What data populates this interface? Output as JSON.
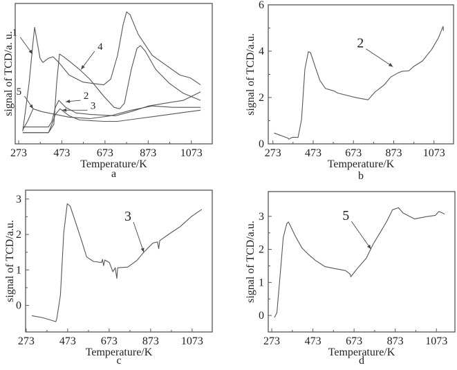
{
  "chart_data": [
    {
      "panel": "a",
      "type": "line",
      "caption": "a",
      "xlabel": "Temperature/K",
      "ylabel": "signal of TCD/a. u.",
      "xticks": [
        273,
        473,
        673,
        873,
        1073
      ],
      "yticks": [],
      "xlim": [
        257,
        1170
      ],
      "ylim": [
        0,
        10
      ],
      "grid": false,
      "line_color": "#555555",
      "series": [
        {
          "name": "1",
          "x": [
            292,
            321,
            340,
            347,
            356,
            372,
            385,
            411,
            433,
            459,
            507,
            571,
            667,
            699,
            731,
            757,
            773,
            789,
            827,
            892,
            956,
            1020,
            1068,
            1116
          ],
          "y": [
            0.9,
            4.3,
            7.3,
            8.3,
            7.5,
            6.1,
            5.8,
            6.1,
            6.2,
            5.8,
            4.9,
            4.4,
            4.2,
            4.6,
            6.3,
            8.5,
            9.4,
            9.2,
            7.8,
            6.3,
            5.6,
            4.9,
            4.7,
            4.2
          ]
        },
        {
          "name": "2",
          "x": [
            292,
            411,
            427,
            443,
            459,
            491,
            539,
            603,
            722,
            795,
            876,
            956,
            1036,
            1116
          ],
          "y": [
            1.2,
            1.2,
            1.6,
            2.6,
            3.1,
            2.6,
            2.2,
            2.1,
            2.0,
            2.3,
            2.7,
            2.9,
            3.1,
            3.7
          ]
        },
        {
          "name": "3",
          "x": [
            292,
            411,
            427,
            443,
            465,
            507,
            555,
            667,
            731,
            827,
            924,
            1020,
            1116
          ],
          "y": [
            0.8,
            0.8,
            1.4,
            2.1,
            2.5,
            2.0,
            1.7,
            1.6,
            1.6,
            1.8,
            2.0,
            2.2,
            2.4
          ]
        },
        {
          "name": "4",
          "x": [
            292,
            411,
            436,
            449,
            462,
            481,
            507,
            555,
            603,
            667,
            715,
            741,
            763,
            795,
            821,
            837,
            860,
            908,
            972,
            1036,
            1116
          ],
          "y": [
            0.8,
            0.8,
            1.4,
            4.3,
            6.4,
            6.2,
            5.9,
            5.3,
            4.6,
            3.4,
            2.6,
            2.5,
            2.9,
            5.3,
            6.8,
            7.0,
            6.6,
            5.3,
            4.3,
            3.6,
            3.1
          ]
        },
        {
          "name": "5",
          "x": [
            292,
            314,
            340,
            379,
            443,
            507,
            603,
            699,
            795,
            892,
            988,
            1116
          ],
          "y": [
            1.0,
            1.6,
            2.5,
            2.3,
            2.1,
            1.9,
            1.8,
            2.0,
            2.4,
            2.7,
            2.6,
            2.6
          ]
        }
      ],
      "annotations": [
        {
          "text": "1",
          "xytext": [
            280,
            7.6
          ],
          "xy": [
            337,
            6.4
          ]
        },
        {
          "text": "4",
          "xytext": [
            625,
            6.6
          ],
          "xy": [
            562,
            5.3
          ]
        },
        {
          "text": "5",
          "xytext": [
            300,
            3.4
          ],
          "xy": [
            340,
            2.5
          ]
        },
        {
          "text": "2",
          "xytext": [
            560,
            3.1
          ],
          "xy": [
            491,
            3.0
          ]
        },
        {
          "text": "3",
          "xytext": [
            592,
            2.4
          ],
          "xy": [
            475,
            2.4
          ]
        }
      ]
    },
    {
      "panel": "b",
      "type": "line",
      "caption": "b",
      "xlabel": "Temperature/K",
      "ylabel": "signal of TCD/a.u.",
      "xticks": [
        273,
        473,
        673,
        873,
        1073
      ],
      "yticks": [
        0,
        2,
        4,
        6
      ],
      "xlim": [
        250,
        1170
      ],
      "ylim": [
        0,
        6
      ],
      "grid": false,
      "line_color": "#555555",
      "series": [
        {
          "name": "2",
          "x": [
            279,
            347,
            352,
            369,
            398,
            415,
            432,
            449,
            460,
            483,
            506,
            534,
            574,
            596,
            642,
            688,
            734,
            746,
            780,
            825,
            859,
            892,
            914,
            948,
            971,
            1016,
            1062,
            1095,
            1118,
            1120
          ],
          "y": [
            0.47,
            0.25,
            0.2,
            0.28,
            0.28,
            1.04,
            3.23,
            3.98,
            3.93,
            3.33,
            2.74,
            2.39,
            2.29,
            2.19,
            2.09,
            1.99,
            1.92,
            1.9,
            2.24,
            2.54,
            2.89,
            3.05,
            3.13,
            3.15,
            3.33,
            3.58,
            4.08,
            4.58,
            5.07,
            4.88
          ]
        }
      ],
      "annotations": [
        {
          "text": "2",
          "xytext": [
            735,
            4.1
          ],
          "xy": [
            869,
            3.33
          ]
        }
      ]
    },
    {
      "panel": "c",
      "type": "line",
      "caption": "c",
      "xlabel": "Temperature/K",
      "ylabel": "signal of TCD/a.u.",
      "xticks": [
        273,
        473,
        673,
        873,
        1073
      ],
      "yticks": [
        0,
        1,
        2,
        3
      ],
      "xlim": [
        270,
        1170
      ],
      "ylim": [
        -0.75,
        3.25
      ],
      "grid": false,
      "line_color": "#555555",
      "series": [
        {
          "name": "3",
          "x": [
            300,
            355,
            416,
            421,
            438,
            454,
            471,
            485,
            509,
            542,
            564,
            597,
            636,
            641,
            646,
            652,
            674,
            691,
            702,
            710,
            714,
            763,
            807,
            840,
            884,
            906,
            912,
            917,
            971,
            1015,
            1070,
            1120
          ],
          "y": [
            -0.29,
            -0.35,
            -0.46,
            -0.36,
            0.29,
            2.05,
            2.87,
            2.8,
            2.38,
            1.79,
            1.37,
            1.24,
            1.21,
            1.3,
            1.12,
            1.28,
            1.21,
            0.95,
            1.06,
            0.76,
            1.06,
            1.08,
            1.27,
            1.5,
            1.76,
            1.79,
            1.6,
            1.83,
            2.05,
            2.22,
            2.51,
            2.71
          ]
        }
      ],
      "annotations": [
        {
          "text": "3",
          "xytext": [
            790,
            2.35
          ],
          "xy": [
            840,
            1.5
          ]
        }
      ]
    },
    {
      "panel": "d",
      "type": "line",
      "caption": "d",
      "xlabel": "Temperature/K",
      "ylabel": "signal of TCD/a.u.",
      "xticks": [
        273,
        473,
        673,
        873,
        1073
      ],
      "yticks": [
        0,
        1,
        2,
        3
      ],
      "xlim": [
        256,
        1163
      ],
      "ylim": [
        -0.5,
        3.75
      ],
      "grid": false,
      "line_color": "#555555",
      "series": [
        {
          "name": "5",
          "x": [
            286,
            298,
            312,
            329,
            346,
            354,
            363,
            385,
            419,
            447,
            486,
            531,
            587,
            631,
            654,
            657,
            687,
            732,
            765,
            799,
            832,
            860,
            889,
            911,
            967,
            1023,
            1068,
            1085,
            1113
          ],
          "y": [
            -0.06,
            0.08,
            1.1,
            2.36,
            2.78,
            2.83,
            2.72,
            2.43,
            2.05,
            1.87,
            1.66,
            1.48,
            1.41,
            1.36,
            1.25,
            1.17,
            1.41,
            1.73,
            2.15,
            2.5,
            2.85,
            3.2,
            3.26,
            3.1,
            2.92,
            2.99,
            3.03,
            3.15,
            3.07
          ]
        }
      ],
      "annotations": [
        {
          "text": "5",
          "xytext": [
            660,
            2.85
          ],
          "xy": [
            755,
            2.01
          ]
        }
      ]
    }
  ]
}
